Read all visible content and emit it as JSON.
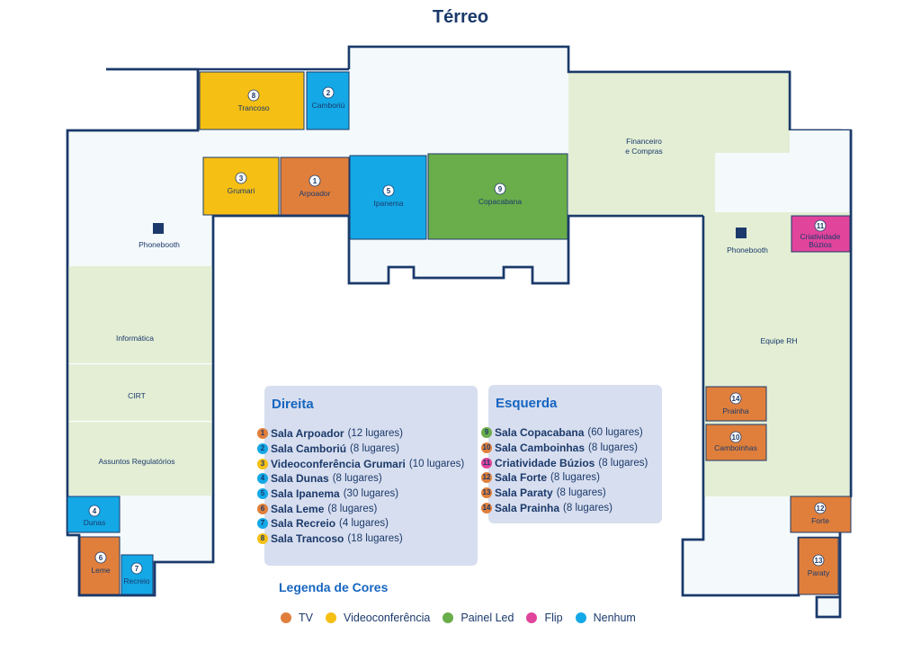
{
  "page": {
    "title": "Térreo"
  },
  "colors": {
    "tv": "#e07f3b",
    "videoconferencia": "#f5bf14",
    "painel_led": "#6aad4b",
    "flip": "#e0449b",
    "nenhum": "#14a8e6",
    "floor": "#f4f9fb",
    "green_area": "#e3eed5",
    "wall": "#1b3a6b"
  },
  "rooms": {
    "r1": {
      "num": "1",
      "name": "Arpoador"
    },
    "r2": {
      "num": "2",
      "name": "Camboriú"
    },
    "r3": {
      "num": "3",
      "name": "Grumari"
    },
    "r4": {
      "num": "4",
      "name": "Dunas"
    },
    "r5": {
      "num": "5",
      "name": "Ipanema"
    },
    "r6": {
      "num": "6",
      "name": "Leme"
    },
    "r7": {
      "num": "7",
      "name": "Recreio"
    },
    "r8": {
      "num": "8",
      "name": "Trancoso"
    },
    "r9": {
      "num": "9",
      "name": "Copacabana"
    },
    "r10": {
      "num": "10",
      "name": "Camboinhas"
    },
    "r11": {
      "num": "11",
      "name_line1": "Criatividade",
      "name_line2": "Búzios"
    },
    "r12": {
      "num": "12",
      "name": "Forte"
    },
    "r13": {
      "num": "13",
      "name": "Paraty"
    },
    "r14": {
      "num": "14",
      "name": "Prainha"
    }
  },
  "areas": {
    "financeiro_line1": "Financeiro",
    "financeiro_line2": "e Compras",
    "informatica": "Informática",
    "cirt": "CIRT",
    "assuntos": "Assuntos Regulatórios",
    "equipe_rh": "Equipe RH",
    "phonebooth_left": "Phonebooth",
    "phonebooth_right": "Phonebooth"
  },
  "direita": {
    "title": "Direita",
    "items": [
      {
        "num": "1",
        "name": "Sala Arpoador",
        "cap": "(12 lugares)",
        "color": "#e07f3b"
      },
      {
        "num": "2",
        "name": "Sala Camboriú",
        "cap": "(8 lugares)",
        "color": "#14a8e6"
      },
      {
        "num": "3",
        "name": "Videoconferência Grumari",
        "cap": "(10 lugares)",
        "color": "#f5bf14"
      },
      {
        "num": "4",
        "name": "Sala Dunas",
        "cap": "(8 lugares)",
        "color": "#14a8e6"
      },
      {
        "num": "5",
        "name": "Sala Ipanema",
        "cap": "(30 lugares)",
        "color": "#14a8e6"
      },
      {
        "num": "6",
        "name": "Sala Leme",
        "cap": "(8 lugares)",
        "color": "#e07f3b"
      },
      {
        "num": "7",
        "name": "Sala Recreio",
        "cap": "(4 lugares)",
        "color": "#14a8e6"
      },
      {
        "num": "8",
        "name": "Sala Trancoso",
        "cap": "(18 lugares)",
        "color": "#f5bf14"
      }
    ]
  },
  "esquerda": {
    "title": "Esquerda",
    "items": [
      {
        "num": "9",
        "name": "Sala Copacabana",
        "cap": "(60 lugares)",
        "color": "#6aad4b"
      },
      {
        "num": "10",
        "name": "Sala Camboinhas",
        "cap": "(8 lugares)",
        "color": "#e07f3b"
      },
      {
        "num": "11",
        "name": "Criatividade Búzios",
        "cap": "(8 lugares)",
        "color": "#e0449b"
      },
      {
        "num": "12",
        "name": "Sala Forte",
        "cap": "(8 lugares)",
        "color": "#e07f3b"
      },
      {
        "num": "13",
        "name": "Sala Paraty",
        "cap": "(8 lugares)",
        "color": "#e07f3b"
      },
      {
        "num": "14",
        "name": "Sala Prainha",
        "cap": "(8 lugares)",
        "color": "#e07f3b"
      }
    ]
  },
  "legend": {
    "title": "Legenda de Cores",
    "items": [
      {
        "label": "TV",
        "color": "#e07f3b"
      },
      {
        "label": "Videoconferência",
        "color": "#f5bf14"
      },
      {
        "label": "Painel Led",
        "color": "#6aad4b"
      },
      {
        "label": "Flip",
        "color": "#e0449b"
      },
      {
        "label": "Nenhum",
        "color": "#14a8e6"
      }
    ]
  }
}
